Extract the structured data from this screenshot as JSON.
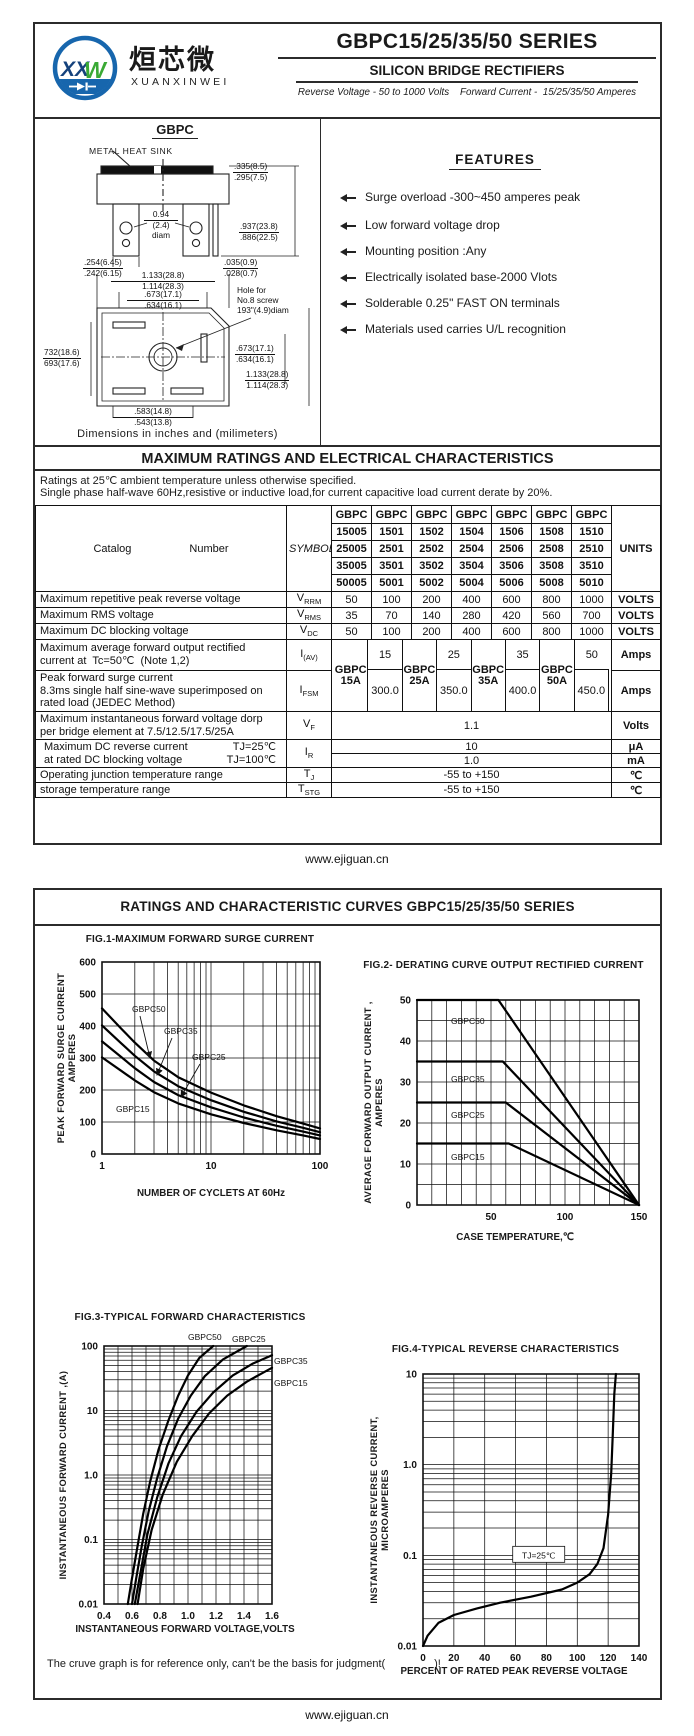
{
  "header": {
    "series_title": "GBPC15/25/35/50 SERIES",
    "subtitle": "SILICON BRIDGE RECTIFIERS",
    "tagline": "Reverse Voltage - 50 to 1000 Volts    Forward Current -  15/25/35/50 Amperes",
    "logo": {
      "cn": "烜芯微",
      "en": "XUANXINWEI",
      "monogram_x": "XX",
      "monogram_w": "W"
    }
  },
  "drawing": {
    "title": "GBPC",
    "heat_sink": "METAL HEAT SINK",
    "caption": "Dimensions in inches and (milimeters)",
    "hole": {
      "l1": "Hole for",
      "l2": "No.8 screw",
      "l3": "193\"(4.9)diam"
    },
    "d_diam": {
      "a": "0.94",
      "b": "(2.4)",
      "c": "diam"
    },
    "dims": [
      {
        "a": ".335(8.5)",
        "b": ".295(7.5)"
      },
      {
        "a": ".937(23.8)",
        "b": ".886(22.5)"
      },
      {
        "a": ".035(0.9)",
        "b": ".028(0.7)"
      },
      {
        "a": ".254(6.45)",
        "b": ".242(6.15)"
      },
      {
        "a": "1.133(28.8)",
        "b": "1.114(28.3)"
      },
      {
        "a": ".673(17.1)",
        "b": ".634(16.1)"
      },
      {
        "a": "732(18.6)",
        "b": "693(17.6)"
      },
      {
        "a": ".673(17.1)",
        "b": ".634(16.1)"
      },
      {
        "a": "1.133(28.8)",
        "b": "1.114(28.3)"
      },
      {
        "a": ".583(14.8)",
        "b": ".543(13.8)"
      }
    ]
  },
  "features": {
    "title": "FEATURES",
    "items": [
      "Surge overload -300~450 amperes peak",
      "Low forward voltage drop",
      "Mounting position :Any",
      "Electrically isolated base-2000 Vlots",
      "Solderable 0.25\" FAST ON terminals",
      "Materials used carries U/L recognition"
    ]
  },
  "table": {
    "section_title": "MAXIMUM RATINGS AND ELECTRICAL CHARACTERISTICS",
    "note1": "Ratings at 25℃ ambient temperature unless otherwise specified.",
    "note2": "Single phase half-wave 60Hz,resistive or inductive load,for current capacitive load current derate by 20%.",
    "catalog_label": "Catalog",
    "number_label": "Number",
    "symbols_label": "SYMBOLS",
    "units_label": "UNITS",
    "gbpc": "GBPC",
    "catalog_rows": [
      [
        "15005",
        "1501",
        "1502",
        "1504",
        "1506",
        "1508",
        "1510"
      ],
      [
        "25005",
        "2501",
        "2502",
        "2504",
        "2506",
        "2508",
        "2510"
      ],
      [
        "35005",
        "3501",
        "3502",
        "3504",
        "3506",
        "3508",
        "3510"
      ],
      [
        "50005",
        "5001",
        "5002",
        "5004",
        "5006",
        "5008",
        "5010"
      ]
    ],
    "vrrm": {
      "label": "Maximum repetitive peak reverse voltage",
      "sym_m": "V",
      "sym_s": "RRM",
      "values": [
        "50",
        "100",
        "200",
        "400",
        "600",
        "800",
        "1000"
      ],
      "unit": "VOLTS"
    },
    "vrms": {
      "label": "Maximum RMS voltage",
      "sym_m": "V",
      "sym_s": "RMS",
      "values": [
        "35",
        "70",
        "140",
        "280",
        "420",
        "560",
        "700"
      ],
      "unit": "VOLTS"
    },
    "vdc": {
      "label": "Maximum DC blocking voltage",
      "sym_m": "V",
      "sym_s": "DC",
      "values": [
        "50",
        "100",
        "200",
        "400",
        "600",
        "800",
        "1000"
      ],
      "unit": "VOLTS"
    },
    "iav": {
      "label1": "Maximum average forward output rectified",
      "label2": "current at  Tc=50℃  (Note 1,2)",
      "sym_m": "I",
      "sym_s": "(AV)",
      "unit": "Amps"
    },
    "ifsm": {
      "label1": "Peak forward surge current",
      "label2": "8.3ms single half sine-wave superimposed on",
      "label3": "rated load (JEDEC Method)",
      "sym_m": "I",
      "sym_s": "FSM",
      "unit": "Amps"
    },
    "groups": [
      {
        "name": "GBPC",
        "amp": "15A",
        "iav": "15",
        "ifsm": "300.0"
      },
      {
        "name": "GBPC",
        "amp": "25A",
        "iav": "25",
        "ifsm": "350.0"
      },
      {
        "name": "GBPC",
        "amp": "35A",
        "iav": "35",
        "ifsm": "400.0"
      },
      {
        "name": "GBPC",
        "amp": "50A",
        "iav": "50",
        "ifsm": "450.0"
      }
    ],
    "vf": {
      "label1": "Maximum instantaneous forward voltage dorp",
      "label2": "per bridge element at 7.5/12.5/17.5/25A",
      "sym_m": "V",
      "sym_s": "F",
      "value": "1.1",
      "unit": "Volts"
    },
    "ir": {
      "label1": "Maximum DC reverse current",
      "cond1": "TJ=25℃",
      "label2": "at rated DC blocking voltage",
      "cond2": "TJ=100℃",
      "sym_m": "I",
      "sym_s": "R",
      "value1": "10",
      "unit1": "μA",
      "value2": "1.0",
      "unit2": "mA"
    },
    "tj": {
      "label": "Operating junction temperature range",
      "sym_m": "T",
      "sym_s": "J",
      "value": "-55 to +150",
      "unit": "℃"
    },
    "tstg": {
      "label": "storage temperature range",
      "sym_m": "T",
      "sym_s": "STG",
      "value": "-55 to +150",
      "unit": "℃"
    }
  },
  "footer": {
    "url": "www.ejiguan.cn"
  },
  "page2": {
    "header": "RATINGS AND CHARACTERISTIC CURVES GBPC15/25/35/50 SERIES",
    "note": "The cruve graph is for reference only, can't be the basis for judgment(                )!"
  },
  "chart_data": [
    {
      "id": "fig1",
      "type": "line",
      "title": "FIG.1-MAXIMUM FORWARD SURGE CURRENT",
      "xlabel": "NUMBER OF CYCLETS AT 60Hz",
      "ylabel_lines": [
        "PEAK FORWARD SURGE CURRENT",
        "AMPERES"
      ],
      "xscale": "log",
      "xlim": [
        1,
        100
      ],
      "yscale": "linear",
      "ylim": [
        0,
        600
      ],
      "ygrid_step": 100,
      "xticks": [
        1,
        10,
        100
      ],
      "xtick_labels": [
        "1",
        "10",
        "100"
      ],
      "yticks": [
        0,
        100,
        200,
        300,
        400,
        500,
        600
      ],
      "ytick_labels": [
        "0",
        "100",
        "200",
        "300",
        "400",
        "500",
        "600"
      ],
      "series": [
        {
          "name": "GBPC50",
          "points": [
            [
              1,
              455
            ],
            [
              1.5,
              392
            ],
            [
              2,
              348
            ],
            [
              3,
              292
            ],
            [
              5,
              240
            ],
            [
              10,
              192
            ],
            [
              20,
              152
            ],
            [
              40,
              118
            ],
            [
              70,
              95
            ],
            [
              100,
              80
            ]
          ]
        },
        {
          "name": "GBPC35",
          "points": [
            [
              1,
              402
            ],
            [
              1.5,
              346
            ],
            [
              2,
              307
            ],
            [
              3,
              258
            ],
            [
              5,
              212
            ],
            [
              10,
              168
            ],
            [
              20,
              132
            ],
            [
              40,
              102
            ],
            [
              70,
              82
            ],
            [
              100,
              68
            ]
          ]
        },
        {
          "name": "GBPC25",
          "points": [
            [
              1,
              352
            ],
            [
              1.5,
              303
            ],
            [
              2,
              268
            ],
            [
              3,
              225
            ],
            [
              5,
              184
            ],
            [
              10,
              146
            ],
            [
              20,
              114
            ],
            [
              40,
              88
            ],
            [
              70,
              70
            ],
            [
              100,
              58
            ]
          ]
        },
        {
          "name": "GBPC15",
          "points": [
            [
              1,
              302
            ],
            [
              1.5,
              260
            ],
            [
              2,
              230
            ],
            [
              3,
              193
            ],
            [
              5,
              158
            ],
            [
              10,
              124
            ],
            [
              20,
              97
            ],
            [
              40,
              74
            ],
            [
              70,
              58
            ],
            [
              100,
              47
            ]
          ]
        }
      ]
    },
    {
      "id": "fig2",
      "type": "line",
      "title": "FIG.2- DERATING CURVE OUTPUT RECTIFIED CURRENT",
      "xlabel": "CASE TEMPERATURE,℃",
      "ylabel_lines": [
        "AVERAGE FORWARD OUTPUT CURRENT ,",
        "AMPERES"
      ],
      "xscale": "linear",
      "xlim": [
        0,
        150
      ],
      "xgrid_step": 10,
      "yscale": "linear",
      "ylim": [
        0,
        50
      ],
      "ygrid_step": 5,
      "xticks": [
        50,
        100,
        150
      ],
      "xtick_labels": [
        "50",
        "100",
        "150"
      ],
      "yticks": [
        0,
        10,
        20,
        30,
        40,
        50
      ],
      "ytick_labels": [
        "0",
        "10",
        "20",
        "30",
        "40",
        "50"
      ],
      "series": [
        {
          "name": "GBPC50",
          "points": [
            [
              0,
              50
            ],
            [
              55,
              50
            ],
            [
              150,
              0
            ]
          ]
        },
        {
          "name": "GBPC35",
          "points": [
            [
              0,
              35
            ],
            [
              58,
              35
            ],
            [
              150,
              0
            ]
          ]
        },
        {
          "name": "GBPC25",
          "points": [
            [
              0,
              25
            ],
            [
              60,
              25
            ],
            [
              150,
              0
            ]
          ]
        },
        {
          "name": "GBPC15",
          "points": [
            [
              0,
              15
            ],
            [
              62,
              15
            ],
            [
              150,
              0
            ]
          ]
        }
      ]
    },
    {
      "id": "fig3",
      "type": "line",
      "title": "FIG.3-TYPICAL FORWARD CHARACTERISTICS",
      "xlabel": "INSTANTANEOUS FORWARD VOLTAGE,VOLTS",
      "ylabel_lines": [
        "INSTANTANEOUS FORWARD CURRENT ,(A)"
      ],
      "xscale": "linear",
      "xlim": [
        0.4,
        1.6
      ],
      "xgrid_step": 0.1,
      "yscale": "log",
      "ylim": [
        0.01,
        100
      ],
      "xticks": [
        0.4,
        0.6,
        0.8,
        1.0,
        1.2,
        1.4,
        1.6
      ],
      "xtick_labels": [
        "0.4",
        "0.6",
        "0.8",
        "1.0",
        "1.2",
        "1.4",
        "1.6"
      ],
      "yticks": [
        100,
        10,
        1.0,
        0.1,
        0.01
      ],
      "ytick_labels": [
        "100",
        "10",
        "1.0",
        "0.1",
        "0.01"
      ],
      "series": [
        {
          "name": "GBPC50",
          "points": [
            [
              0.57,
              0.01
            ],
            [
              0.6,
              0.025
            ],
            [
              0.64,
              0.08
            ],
            [
              0.68,
              0.25
            ],
            [
              0.73,
              0.8
            ],
            [
              0.79,
              2.5
            ],
            [
              0.86,
              7
            ],
            [
              0.93,
              17
            ],
            [
              1.0,
              35
            ],
            [
              1.08,
              65
            ],
            [
              1.18,
              100
            ]
          ]
        },
        {
          "name": "GBPC25",
          "points": [
            [
              0.6,
              0.01
            ],
            [
              0.63,
              0.025
            ],
            [
              0.67,
              0.08
            ],
            [
              0.72,
              0.28
            ],
            [
              0.78,
              0.9
            ],
            [
              0.85,
              2.8
            ],
            [
              0.93,
              7.5
            ],
            [
              1.02,
              17
            ],
            [
              1.12,
              34
            ],
            [
              1.25,
              62
            ],
            [
              1.42,
              100
            ]
          ]
        },
        {
          "name": "GBPC35",
          "points": [
            [
              0.62,
              0.01
            ],
            [
              0.66,
              0.03
            ],
            [
              0.71,
              0.12
            ],
            [
              0.78,
              0.45
            ],
            [
              0.86,
              1.5
            ],
            [
              0.95,
              4
            ],
            [
              1.06,
              9.5
            ],
            [
              1.18,
              19
            ],
            [
              1.32,
              35
            ],
            [
              1.46,
              53
            ],
            [
              1.6,
              72
            ]
          ]
        },
        {
          "name": "GBPC15",
          "points": [
            [
              0.64,
              0.01
            ],
            [
              0.68,
              0.035
            ],
            [
              0.74,
              0.14
            ],
            [
              0.82,
              0.5
            ],
            [
              0.92,
              1.6
            ],
            [
              1.03,
              4
            ],
            [
              1.15,
              9
            ],
            [
              1.28,
              17
            ],
            [
              1.42,
              28
            ],
            [
              1.52,
              37
            ],
            [
              1.6,
              46
            ]
          ]
        }
      ]
    },
    {
      "id": "fig4",
      "type": "line",
      "title": "FIG.4-TYPICAL REVERSE CHARACTERISTICS",
      "xlabel": "PERCENT OF RATED PEAK REVERSE VOLTAGE",
      "ylabel_lines": [
        "INSTANTANEOUS REVERSE CURRENT,",
        "MICROAMPERES"
      ],
      "xscale": "linear",
      "xlim": [
        0,
        140
      ],
      "xgrid_step": 20,
      "yscale": "log",
      "ylim": [
        0.01,
        10
      ],
      "xticks": [
        0,
        20,
        40,
        60,
        80,
        100,
        120,
        140
      ],
      "xtick_labels": [
        "0",
        "20",
        "40",
        "60",
        "80",
        "100",
        "120",
        "140"
      ],
      "yticks": [
        10,
        1.0,
        0.1,
        0.01
      ],
      "ytick_labels": [
        "10",
        "1.0",
        "0.1",
        "0.01"
      ],
      "annotation": {
        "text": "TJ=25℃",
        "x": 75,
        "y": 0.1
      },
      "series": [
        {
          "name": "",
          "points": [
            [
              0,
              0.01
            ],
            [
              3,
              0.013
            ],
            [
              10,
              0.018
            ],
            [
              20,
              0.022
            ],
            [
              35,
              0.026
            ],
            [
              50,
              0.03
            ],
            [
              70,
              0.035
            ],
            [
              90,
              0.042
            ],
            [
              100,
              0.05
            ],
            [
              108,
              0.062
            ],
            [
              113,
              0.08
            ],
            [
              117,
              0.12
            ],
            [
              120,
              0.28
            ],
            [
              122,
              0.8
            ],
            [
              123,
              2.2
            ],
            [
              124,
              6
            ],
            [
              125,
              10
            ]
          ]
        }
      ]
    }
  ]
}
